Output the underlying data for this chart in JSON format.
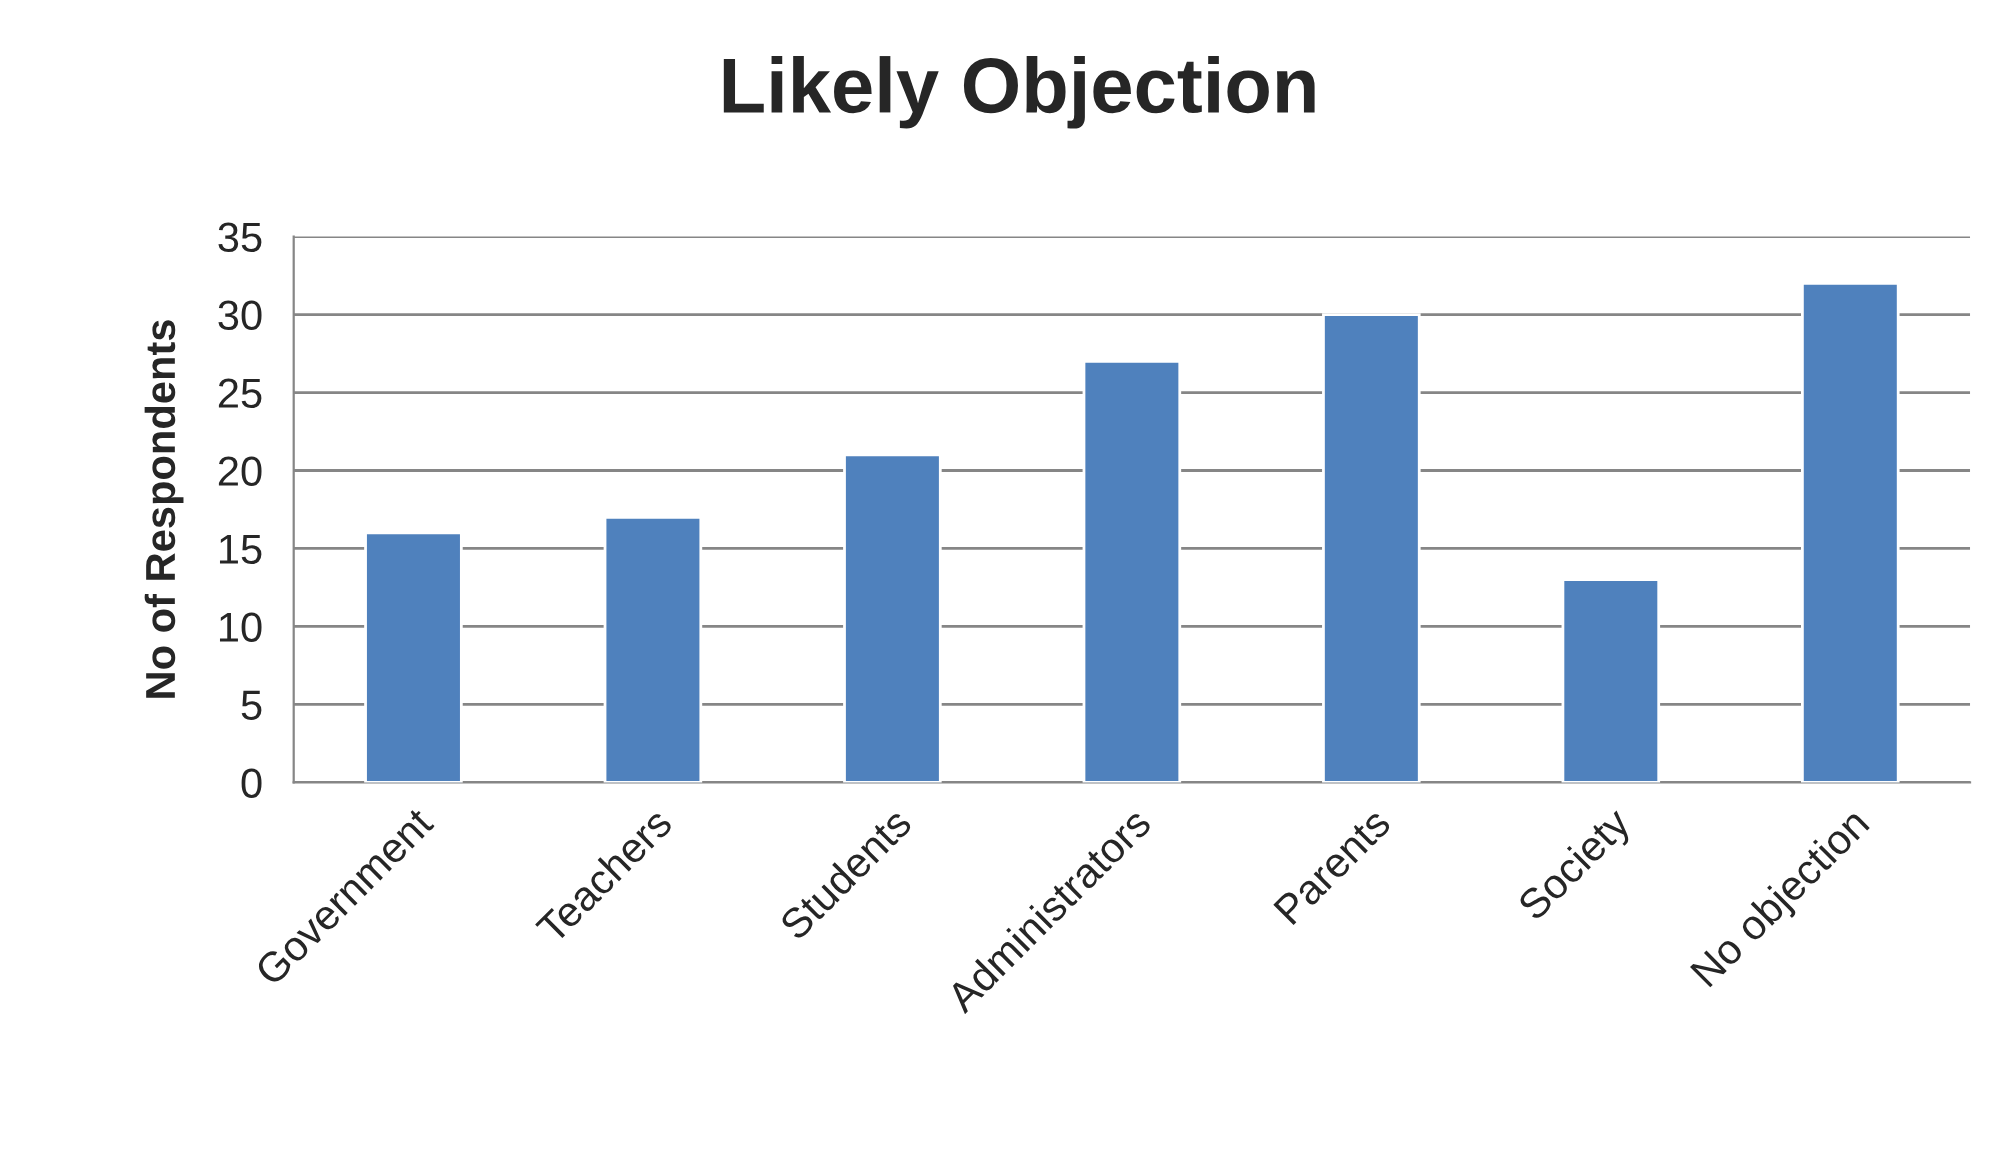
{
  "chart_data": {
    "type": "bar",
    "title": "Likely Objection",
    "ylabel": "No of Respondents",
    "categories": [
      "Government",
      "Teachers",
      "Students",
      "Administrators",
      "Parents",
      "Society",
      "No objection"
    ],
    "values": [
      16,
      17,
      21,
      27,
      30,
      13,
      32
    ],
    "color": "#4f81bd",
    "ylim": [
      0,
      35
    ],
    "yticks": [
      0,
      5,
      10,
      15,
      20,
      25,
      30,
      35
    ],
    "grid": "y",
    "legend": false
  }
}
